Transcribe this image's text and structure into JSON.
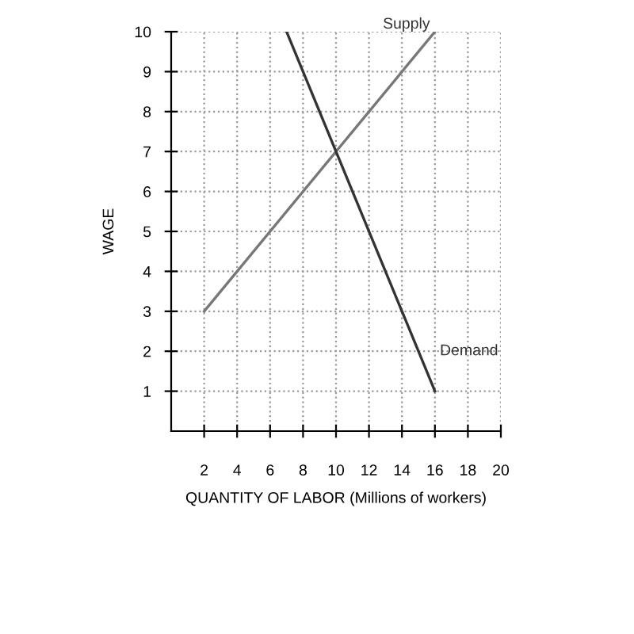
{
  "chart_data": {
    "type": "line",
    "xlabel": "QUANTITY OF LABOR (Millions of workers)",
    "ylabel": "WAGE",
    "series": [
      {
        "name": "Supply",
        "color": "#777777",
        "x": [
          2,
          16
        ],
        "values": [
          3,
          10
        ]
      },
      {
        "name": "Demand",
        "color": "#333333",
        "x": [
          7,
          16
        ],
        "values": [
          10,
          1
        ]
      }
    ],
    "xlim": [
      0,
      20
    ],
    "xticks": [
      2,
      4,
      6,
      8,
      10,
      12,
      14,
      16,
      18,
      20
    ],
    "ylim": [
      0,
      10
    ],
    "yticks": [
      1,
      2,
      3,
      4,
      5,
      6,
      7,
      8,
      9,
      10
    ],
    "grid": true,
    "marker": "none",
    "line_style": "solid",
    "legend": false
  }
}
